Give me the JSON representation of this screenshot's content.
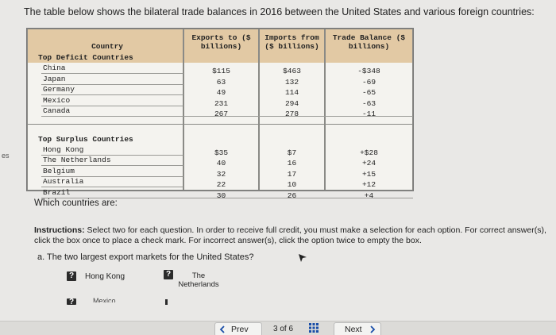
{
  "prompt": "The table below shows the bilateral trade balances in 2016 between the United States and various foreign countries:",
  "side_fragment": "es",
  "table": {
    "columns": [
      "Country",
      "Exports to ($ billions)",
      "Imports from ($ billions)",
      "Trade Balance ($ billions)"
    ],
    "groups": [
      {
        "label": "Top Deficit Countries",
        "rows": [
          [
            "China",
            "$115",
            "$463",
            "-$348"
          ],
          [
            "Japan",
            "63",
            "132",
            "-69"
          ],
          [
            "Germany",
            "49",
            "114",
            "-65"
          ],
          [
            "Mexico",
            "231",
            "294",
            "-63"
          ],
          [
            "Canada",
            "267",
            "278",
            "-11"
          ]
        ]
      },
      {
        "label": "Top Surplus Countries",
        "rows": [
          [
            "Hong Kong",
            "$35",
            "$7",
            "+$28"
          ],
          [
            "The Netherlands",
            "40",
            "16",
            "+24"
          ],
          [
            "Belgium",
            "32",
            "17",
            "+15"
          ],
          [
            "Australia",
            "22",
            "10",
            "+12"
          ],
          [
            "Brazil",
            "30",
            "26",
            "+4"
          ]
        ]
      }
    ]
  },
  "question": "Which countries are:",
  "instructions": {
    "label": "Instructions:",
    "text": "Select two for each question. In order to receive full credit, you must make a selection for each option. For correct answer(s), click the box once to place a check mark. For incorrect answer(s), click the option twice to empty the box."
  },
  "items": [
    {
      "label": "a. The two largest export markets for the United States?",
      "options": [
        {
          "icon": "?",
          "text": "Hong Kong"
        },
        {
          "icon": "?",
          "text": "The Netherlands"
        },
        {
          "icon": "?",
          "text": "Mexico"
        }
      ]
    }
  ],
  "nav": {
    "prev": "Prev",
    "position": "3 of 6",
    "next": "Next"
  }
}
